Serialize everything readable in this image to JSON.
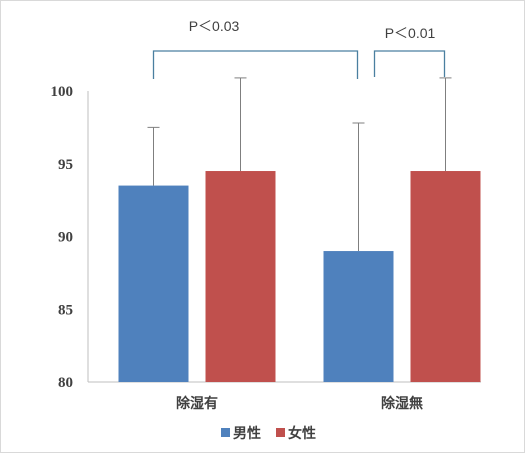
{
  "chart_data": {
    "type": "bar",
    "categories": [
      "除湿有",
      "除湿無"
    ],
    "series": [
      {
        "name": "男性",
        "color": "#4f81bd",
        "values": [
          93.5,
          89.0
        ],
        "error_upper": [
          97.5,
          97.8
        ]
      },
      {
        "name": "女性",
        "color": "#c0504d",
        "values": [
          94.5,
          94.5
        ],
        "error_upper": [
          100.9,
          100.9
        ]
      }
    ],
    "ylim": [
      80,
      100
    ],
    "yticks": [
      80,
      85,
      90,
      95,
      100
    ],
    "grid": false,
    "legend_position": "bottom",
    "annotations": [
      {
        "text": "P＜0.03",
        "bracket_from": {
          "category": "除湿有",
          "series": "男性"
        },
        "bracket_to": {
          "category": "除湿無",
          "series": "男性"
        }
      },
      {
        "text": "P＜0.01",
        "bracket_from": {
          "category": "除湿無",
          "series": "男性"
        },
        "bracket_to": {
          "category": "除湿無",
          "series": "女性"
        }
      }
    ]
  }
}
